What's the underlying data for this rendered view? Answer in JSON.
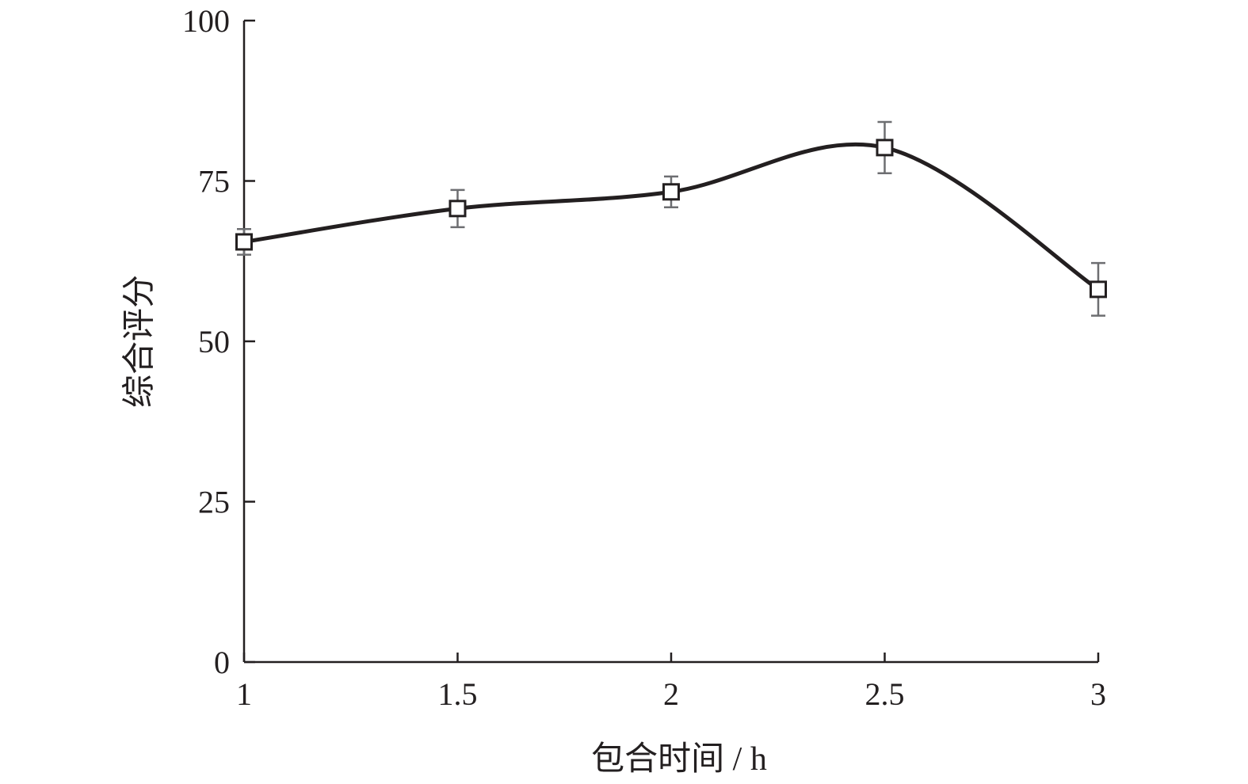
{
  "chart_data": {
    "type": "line",
    "title": "",
    "xlabel": "包合时间 / h",
    "ylabel": "综合评分",
    "x": [
      1,
      1.5,
      2,
      2.5,
      3
    ],
    "x_tick_labels": [
      "1",
      "1.5",
      "2",
      "2.5",
      "3"
    ],
    "y_tick_values": [
      0,
      25,
      50,
      75,
      100
    ],
    "y_tick_labels": [
      "0",
      "25",
      "50",
      "75",
      "100"
    ],
    "xlim": [
      1,
      3
    ],
    "ylim": [
      0,
      100
    ],
    "grid": false,
    "series": [
      {
        "values": [
          65.5,
          70.7,
          73.3,
          80.2,
          58.1
        ],
        "error": [
          2.0,
          2.9,
          2.4,
          4.0,
          4.1
        ],
        "marker": "square-open",
        "line_style": "smooth",
        "color": "#231f20"
      }
    ]
  }
}
